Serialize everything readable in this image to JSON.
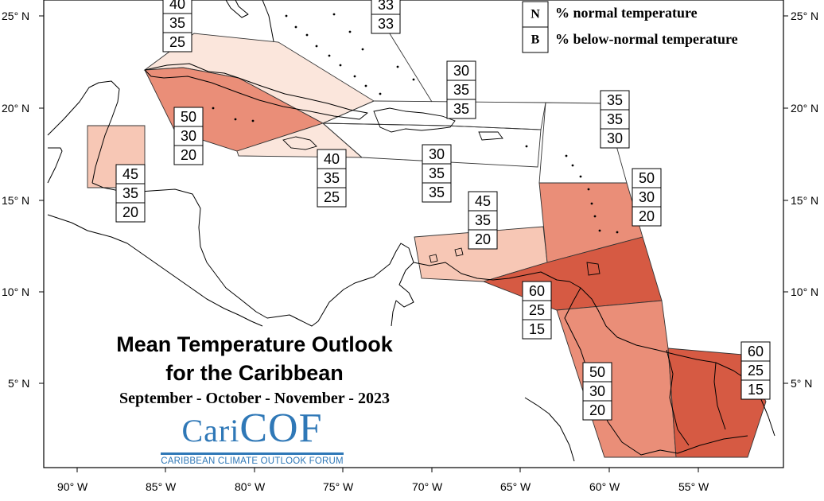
{
  "colors": {
    "above_60": "#d65a43",
    "above_50": "#ea8e78",
    "above_45": "#f7c7b5",
    "above_40": "#fbe6dc",
    "above_35_33": "#ffffff"
  },
  "title": {
    "line1": "Mean Temperature Outlook",
    "line2": "for the Caribbean",
    "period": "September - October - November - 2023"
  },
  "logo": {
    "word_cari": "Cari",
    "word_cof": "COF",
    "caption": "CARIBBEAN CLIMATE OUTLOOK FORUM"
  },
  "legend": {
    "items": [
      {
        "key": "N",
        "text": "% normal temperature"
      },
      {
        "key": "B",
        "text": "% below-normal temperature"
      }
    ]
  },
  "axes": {
    "lat_labels": [
      "25° N",
      "20° N",
      "15° N",
      "10° N",
      "5° N"
    ],
    "lon_labels": [
      "90° W",
      "85° W",
      "80° W",
      "75° W",
      "70° W",
      "65° W",
      "60° W",
      "55° W"
    ]
  },
  "regions": [
    {
      "name": "north-cuba-bahamas",
      "category": "above_40",
      "probs": [
        "40",
        "35",
        "25"
      ]
    },
    {
      "name": "turks-caicos",
      "category": "above_35_33",
      "probs": [
        "33",
        "33"
      ]
    },
    {
      "name": "cayman-jamaica",
      "category": "above_50",
      "probs": [
        "50",
        "30",
        "20"
      ]
    },
    {
      "name": "belize",
      "category": "above_45",
      "probs": [
        "45",
        "35",
        "20"
      ]
    },
    {
      "name": "jamaica",
      "category": "above_40",
      "probs": [
        "40",
        "35",
        "25"
      ]
    },
    {
      "name": "hispaniola",
      "category": "above_35_33",
      "probs": [
        "30",
        "35",
        "35"
      ]
    },
    {
      "name": "puerto-rico",
      "category": "above_35_33",
      "probs": [
        "30",
        "35",
        "35"
      ]
    },
    {
      "name": "northern-leewards",
      "category": "above_35_33",
      "probs": [
        "35",
        "35",
        "30"
      ]
    },
    {
      "name": "abc-islands",
      "category": "above_45",
      "probs": [
        "45",
        "35",
        "20"
      ]
    },
    {
      "name": "windwards",
      "category": "above_50",
      "probs": [
        "50",
        "30",
        "20"
      ]
    },
    {
      "name": "trinidad-venezuela",
      "category": "above_60",
      "probs": [
        "60",
        "25",
        "15"
      ]
    },
    {
      "name": "guyana",
      "category": "above_50",
      "probs": [
        "50",
        "30",
        "20"
      ]
    },
    {
      "name": "suriname-french-guiana",
      "category": "above_60",
      "probs": [
        "60",
        "25",
        "15"
      ]
    }
  ]
}
